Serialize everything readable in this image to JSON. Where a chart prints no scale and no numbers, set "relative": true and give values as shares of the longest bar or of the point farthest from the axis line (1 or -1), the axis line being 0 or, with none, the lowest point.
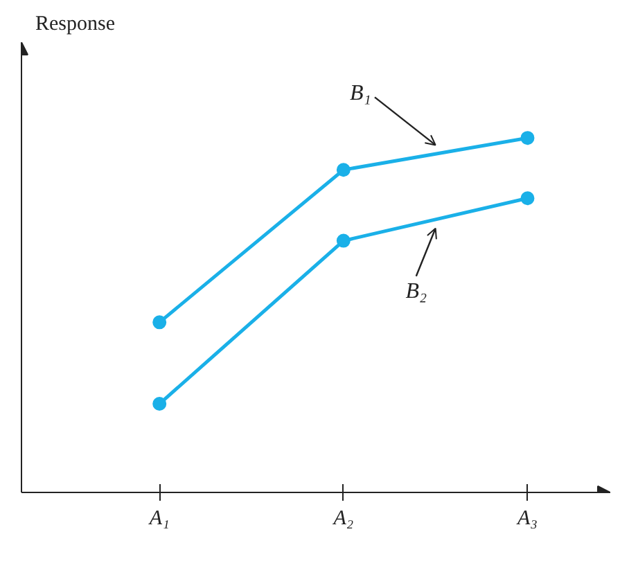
{
  "chart_data": {
    "type": "line",
    "relative": true,
    "ylabel": "Response",
    "categories": [
      "A₁",
      "A₂",
      "A₃"
    ],
    "series": [
      {
        "name": "B₁",
        "color": "#1ab0e8",
        "values": [
          0.48,
          0.91,
          1.0
        ]
      },
      {
        "name": "B₂",
        "color": "#1ab0e8",
        "values": [
          0.25,
          0.71,
          0.83
        ]
      }
    ],
    "marker": "circle",
    "line_style": "solid",
    "legend": false,
    "grid": false
  }
}
